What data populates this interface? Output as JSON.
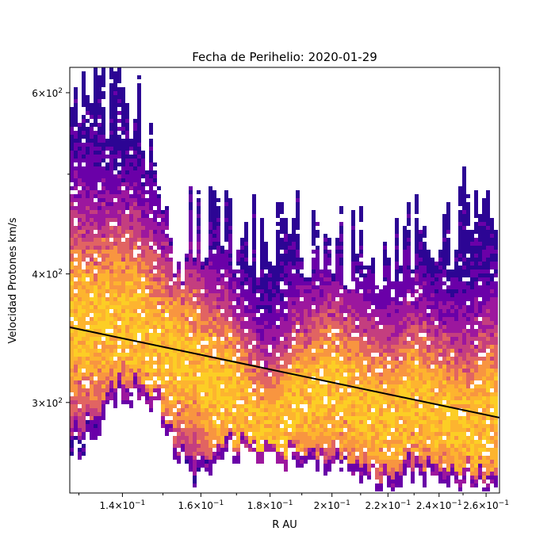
{
  "chart_data": {
    "type": "heatmap",
    "title": "Fecha de Perihelio: 2020-01-29",
    "xlabel": "R  AU",
    "ylabel": "Velocidad Protones  km/s",
    "x_scale": "log",
    "y_scale": "log",
    "xlim": [
      0.128,
      0.266
    ],
    "ylim": [
      245,
      635
    ],
    "x_ticks": [
      {
        "value": 0.14,
        "mant": "1.4",
        "exp": "−1"
      },
      {
        "value": 0.16,
        "mant": "1.6",
        "exp": "−1"
      },
      {
        "value": 0.18,
        "mant": "1.8",
        "exp": "−1"
      },
      {
        "value": 0.2,
        "mant": "2",
        "exp": "−1"
      },
      {
        "value": 0.22,
        "mant": "2.2",
        "exp": "−1"
      },
      {
        "value": 0.24,
        "mant": "2.4",
        "exp": "−1"
      },
      {
        "value": 0.26,
        "mant": "2.6",
        "exp": "−1"
      }
    ],
    "y_ticks": [
      {
        "value": 300,
        "mant": "3",
        "exp": "2"
      },
      {
        "value": 400,
        "mant": "4",
        "exp": "2"
      },
      {
        "value": 600,
        "mant": "6",
        "exp": "2"
      }
    ],
    "colormap": [
      "#2c0594",
      "#6a00a8",
      "#9c179e",
      "#c43e7f",
      "#e16462",
      "#f89540",
      "#fdb42f",
      "#fcce25"
    ],
    "density_profile": [
      {
        "x": 0.128,
        "lo": 268,
        "hi": 560,
        "core": 360,
        "spread": 0.16
      },
      {
        "x": 0.133,
        "lo": 275,
        "hi": 600,
        "core": 355,
        "spread": 0.16
      },
      {
        "x": 0.138,
        "lo": 300,
        "hi": 590,
        "core": 360,
        "spread": 0.15
      },
      {
        "x": 0.143,
        "lo": 305,
        "hi": 600,
        "core": 360,
        "spread": 0.15
      },
      {
        "x": 0.148,
        "lo": 300,
        "hi": 520,
        "core": 340,
        "spread": 0.15
      },
      {
        "x": 0.153,
        "lo": 270,
        "hi": 420,
        "core": 330,
        "spread": 0.14
      },
      {
        "x": 0.158,
        "lo": 255,
        "hi": 460,
        "core": 325,
        "spread": 0.14
      },
      {
        "x": 0.163,
        "lo": 255,
        "hi": 450,
        "core": 310,
        "spread": 0.14
      },
      {
        "x": 0.168,
        "lo": 270,
        "hi": 440,
        "core": 310,
        "spread": 0.13
      },
      {
        "x": 0.173,
        "lo": 265,
        "hi": 450,
        "core": 290,
        "spread": 0.13
      },
      {
        "x": 0.178,
        "lo": 265,
        "hi": 430,
        "core": 275,
        "spread": 0.13
      },
      {
        "x": 0.183,
        "lo": 265,
        "hi": 440,
        "core": 280,
        "spread": 0.13
      },
      {
        "x": 0.188,
        "lo": 262,
        "hi": 440,
        "core": 300,
        "spread": 0.13
      },
      {
        "x": 0.193,
        "lo": 258,
        "hi": 440,
        "core": 300,
        "spread": 0.13
      },
      {
        "x": 0.198,
        "lo": 258,
        "hi": 440,
        "core": 310,
        "spread": 0.13
      },
      {
        "x": 0.203,
        "lo": 255,
        "hi": 430,
        "core": 305,
        "spread": 0.13
      },
      {
        "x": 0.208,
        "lo": 255,
        "hi": 430,
        "core": 300,
        "spread": 0.13
      },
      {
        "x": 0.213,
        "lo": 252,
        "hi": 420,
        "core": 295,
        "spread": 0.13
      },
      {
        "x": 0.218,
        "lo": 250,
        "hi": 410,
        "core": 290,
        "spread": 0.13
      },
      {
        "x": 0.223,
        "lo": 250,
        "hi": 420,
        "core": 290,
        "spread": 0.13
      },
      {
        "x": 0.228,
        "lo": 255,
        "hi": 430,
        "core": 300,
        "spread": 0.13
      },
      {
        "x": 0.233,
        "lo": 255,
        "hi": 440,
        "core": 300,
        "spread": 0.13
      },
      {
        "x": 0.238,
        "lo": 255,
        "hi": 440,
        "core": 290,
        "spread": 0.13
      },
      {
        "x": 0.243,
        "lo": 255,
        "hi": 420,
        "core": 290,
        "spread": 0.13
      },
      {
        "x": 0.248,
        "lo": 250,
        "hi": 470,
        "core": 280,
        "spread": 0.14
      },
      {
        "x": 0.253,
        "lo": 250,
        "hi": 480,
        "core": 280,
        "spread": 0.14
      },
      {
        "x": 0.258,
        "lo": 248,
        "hi": 480,
        "core": 290,
        "spread": 0.14
      },
      {
        "x": 0.263,
        "lo": 250,
        "hi": 480,
        "core": 290,
        "spread": 0.14
      },
      {
        "x": 0.266,
        "lo": 255,
        "hi": 480,
        "core": 290,
        "spread": 0.14
      }
    ],
    "trend_line": {
      "x": [
        0.128,
        0.266
      ],
      "y": [
        355,
        290
      ],
      "color": "#000000"
    }
  }
}
